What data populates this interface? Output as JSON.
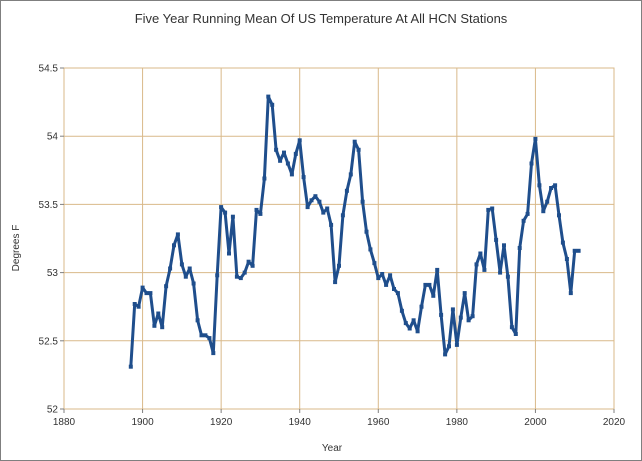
{
  "chart_data": {
    "type": "line",
    "title": "Five Year Running Mean Of US Temperature At All HCN Stations",
    "xlabel": "Year",
    "ylabel": "Degrees F",
    "xlim": [
      1880,
      2020
    ],
    "ylim": [
      52,
      54.5
    ],
    "x_ticks": [
      "1880",
      "1900",
      "1920",
      "1940",
      "1960",
      "1980",
      "2000",
      "2020"
    ],
    "y_ticks": [
      "52",
      "52.5",
      "53",
      "53.5",
      "54",
      "54.5"
    ],
    "grid": true,
    "legend": "none",
    "colors": {
      "series": "#1f4e8c",
      "grid": "#d9b98a",
      "axis": "#7f7f7f",
      "text": "#333333"
    },
    "series": [
      {
        "x": [
          1897,
          1898,
          1899,
          1900,
          1901,
          1902,
          1903,
          1904,
          1905,
          1906,
          1907,
          1908,
          1909,
          1910,
          1911,
          1912,
          1913,
          1914,
          1915,
          1916,
          1917,
          1918,
          1919,
          1920,
          1921,
          1922,
          1923,
          1924,
          1925,
          1926,
          1927,
          1928,
          1929,
          1930,
          1931,
          1932,
          1933,
          1934,
          1935,
          1936,
          1937,
          1938,
          1939,
          1940,
          1941,
          1942,
          1943,
          1944,
          1945,
          1946,
          1947,
          1948,
          1949,
          1950,
          1951,
          1952,
          1953,
          1954,
          1955,
          1956,
          1957,
          1958,
          1959,
          1960,
          1961,
          1962,
          1963,
          1964,
          1965,
          1966,
          1967,
          1968,
          1969,
          1970,
          1971,
          1972,
          1973,
          1974,
          1975,
          1976,
          1977,
          1978,
          1979,
          1980,
          1981,
          1982,
          1983,
          1984,
          1985,
          1986,
          1987,
          1988,
          1989,
          1990,
          1991,
          1992,
          1993,
          1994,
          1995,
          1996,
          1997,
          1998,
          1999,
          2000,
          2001,
          2002,
          2003,
          2004,
          2005,
          2006,
          2007,
          2008,
          2009,
          2010,
          2011
        ],
        "values": [
          52.31,
          52.77,
          52.75,
          52.89,
          52.85,
          52.85,
          52.61,
          52.7,
          52.6,
          52.9,
          53.03,
          53.2,
          53.28,
          53.06,
          52.97,
          53.03,
          52.92,
          52.65,
          52.54,
          52.54,
          52.52,
          52.41,
          52.98,
          53.48,
          53.44,
          53.14,
          53.41,
          52.97,
          52.96,
          53.0,
          53.08,
          53.05,
          53.46,
          53.43,
          53.69,
          54.29,
          54.23,
          53.9,
          53.82,
          53.88,
          53.8,
          53.72,
          53.87,
          53.97,
          53.7,
          53.48,
          53.53,
          53.56,
          53.52,
          53.44,
          53.47,
          53.35,
          52.93,
          53.05,
          53.42,
          53.6,
          53.72,
          53.96,
          53.9,
          53.52,
          53.3,
          53.17,
          53.07,
          52.96,
          52.99,
          52.91,
          52.98,
          52.88,
          52.85,
          52.72,
          52.63,
          52.59,
          52.65,
          52.57,
          52.75,
          52.91,
          52.91,
          52.83,
          53.02,
          52.69,
          52.4,
          52.46,
          52.73,
          52.47,
          52.67,
          52.85,
          52.65,
          52.68,
          53.06,
          53.14,
          53.02,
          53.46,
          53.47,
          53.24,
          53.0,
          53.2,
          52.97,
          52.6,
          52.55,
          53.18,
          53.38,
          53.43,
          53.8,
          53.98,
          53.64,
          53.45,
          53.52,
          53.62,
          53.64,
          53.42,
          53.22,
          53.1,
          52.85,
          53.16,
          53.16
        ]
      }
    ]
  }
}
